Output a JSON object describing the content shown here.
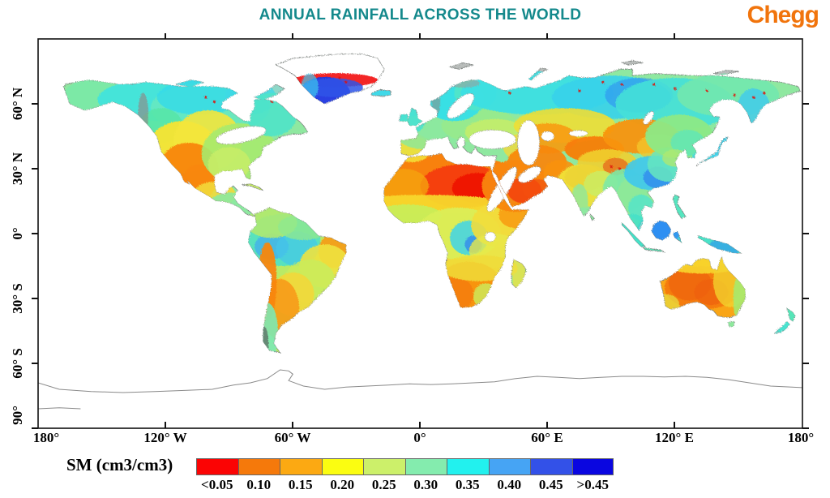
{
  "header": {
    "title": "ANNUAL RAINFALL ACROSS THE WORLD",
    "title_color": "#14898C",
    "brand": {
      "name": "Chegg",
      "color": "#F1740C"
    }
  },
  "axes": {
    "lat_labels": [
      "60° N",
      "30° N",
      "0°",
      "30° S",
      "60° S",
      "90°"
    ],
    "lon_labels": [
      "180°",
      "120° W",
      "60° W",
      "0°",
      "60° E",
      "120° E",
      "180°"
    ]
  },
  "legend": {
    "label": "SM (cm3/cm3)",
    "tick_labels": [
      "<0.05",
      "0.10",
      "0.15",
      "0.20",
      "0.25",
      "0.30",
      "0.35",
      "0.40",
      "0.45",
      ">0.45"
    ],
    "colors": [
      "#FB0404",
      "#F5790B",
      "#FCA912",
      "#FBFD11",
      "#CCF06A",
      "#84ECAE",
      "#22F1EE",
      "#46A4F4",
      "#3351E8",
      "#0A06E0"
    ]
  },
  "chart_data": {
    "type": "heatmap",
    "title": "ANNUAL RAINFALL ACROSS THE WORLD",
    "variable": "SM (cm3/cm3)",
    "projection": "equirectangular world map",
    "lon_range": [
      -180,
      180
    ],
    "lat_range": [
      -90,
      90
    ],
    "bins": [
      "<0.05",
      "0.05-0.10",
      "0.10-0.15",
      "0.15-0.20",
      "0.20-0.25",
      "0.25-0.30",
      "0.30-0.35",
      "0.35-0.40",
      "0.40-0.45",
      ">0.45"
    ],
    "bin_colors": [
      "#FB0404",
      "#F5790B",
      "#FCA912",
      "#FBFD11",
      "#CCF06A",
      "#84ECAE",
      "#22F1EE",
      "#46A4F4",
      "#3351E8",
      "#0A06E0"
    ],
    "regions": [
      {
        "region": "Eastern Sahara & central Sahara cores",
        "sm": "<0.05"
      },
      {
        "region": "Sahara Desert, Arabian Peninsula",
        "sm": "0.05-0.10"
      },
      {
        "region": "Central Australia, Kalahari, SW USA / N Mexico, Iran, Gobi, Taklamakan, Atacama coast",
        "sm": "0.10-0.15"
      },
      {
        "region": "Sahel, India, Kazakh steppe, US Great Plains, Iberia, Argentina, NE Brazil",
        "sm": "0.15-0.25"
      },
      {
        "region": "Eastern USA, Central/Eastern Europe, Congo margins, SE Asia, NE China, E Africa",
        "sm": "0.25-0.30"
      },
      {
        "region": "Amazon Basin, Canadian taiga, Scandinavia, Northern Siberia, S China",
        "sm": "0.30-0.40"
      },
      {
        "region": "Borneo & Indonesia, New Guinea, central Siberia patches, SE China patches",
        "sm": "0.40-0.45"
      },
      {
        "region": "Southern Greenland",
        "sm": ">0.45"
      },
      {
        "region": "Greenland interior (white, red melt band), Antarctica (outline only)",
        "sm": "no data / ice"
      }
    ]
  }
}
